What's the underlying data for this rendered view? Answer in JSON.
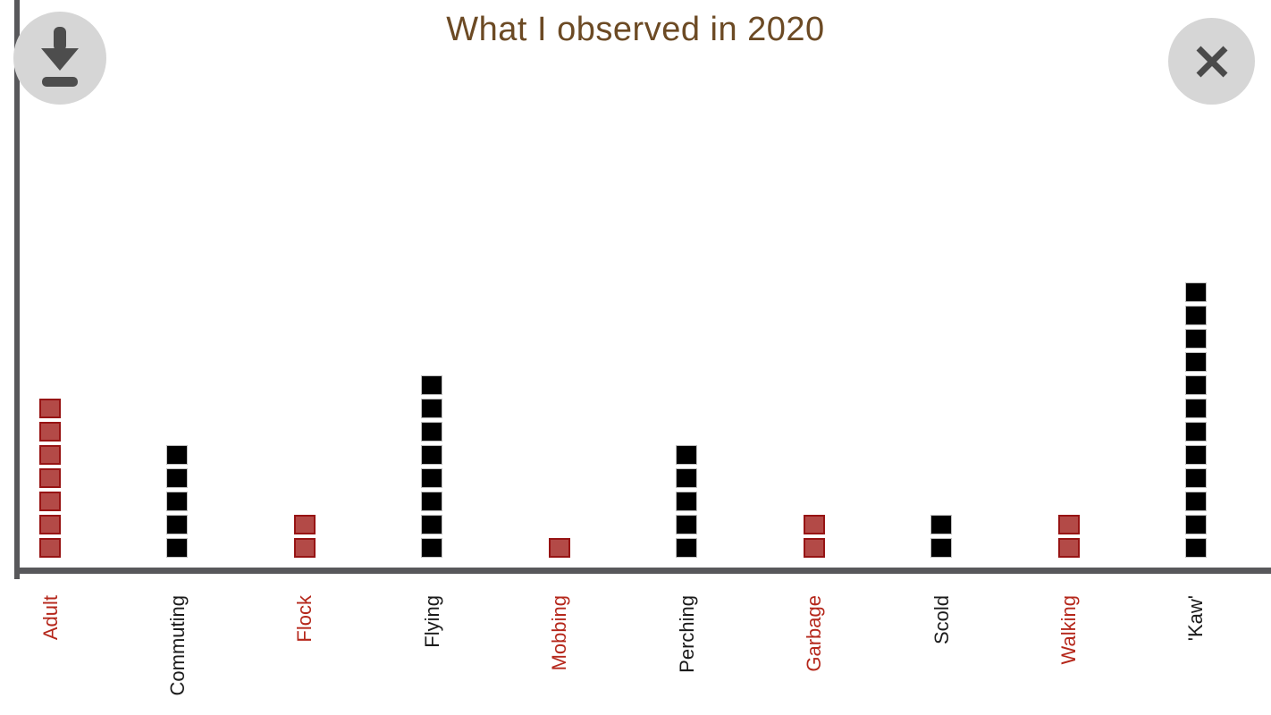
{
  "window": {
    "controls": {
      "download": {
        "icon": "download-icon"
      },
      "close": {
        "icon": "close-icon"
      }
    }
  },
  "chart_data": {
    "type": "bar",
    "style": "unit-squares (each observation drawn as one square)",
    "title": "What I observed in 2020",
    "categories": [
      "Adult",
      "Commuting",
      "Flock",
      "Flying",
      "Mobbing",
      "Perching",
      "Garbage",
      "Scold",
      "Walking",
      "'Kaw'"
    ],
    "values": [
      7,
      5,
      2,
      8,
      1,
      5,
      2,
      2,
      2,
      12
    ],
    "bar_colors": [
      "red",
      "black",
      "red",
      "black",
      "red",
      "black",
      "red",
      "black",
      "red",
      "black"
    ],
    "xlabel": "",
    "ylabel": "",
    "ylim": [
      0,
      12
    ],
    "grid": false,
    "legend": false,
    "x_tick_rotation": -90,
    "colors": {
      "red_fill": "#b34a47",
      "red_border": "#971414",
      "red_label": "#b5271b",
      "black_fill": "#000000",
      "black_border": "#bfbfbf",
      "black_label": "#1b1b1b",
      "axis": "#58585b",
      "title": "#6c4a24",
      "button_bg": "#d6d6d6",
      "button_glyph": "#4d4d4d"
    }
  }
}
